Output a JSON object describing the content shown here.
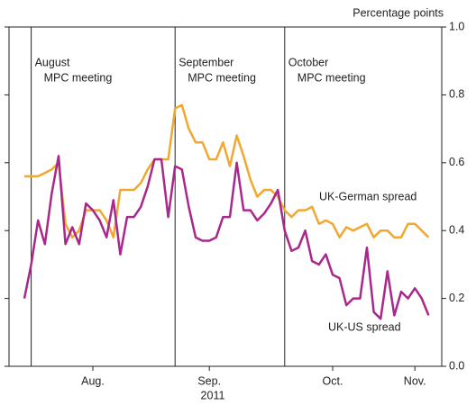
{
  "chart_data": {
    "type": "line",
    "y_label": "Percentage points",
    "x_label": "2011",
    "categories": [
      null,
      null,
      null,
      null,
      null,
      null,
      null,
      null,
      null,
      null,
      "Aug.",
      null,
      null,
      null,
      null,
      null,
      null,
      null,
      null,
      null,
      null,
      null,
      null,
      null,
      null,
      null,
      null,
      "Sep.",
      null,
      null,
      null,
      null,
      null,
      null,
      null,
      null,
      null,
      null,
      null,
      null,
      null,
      null,
      null,
      null,
      null,
      "Oct.",
      null,
      null,
      null,
      null,
      null,
      null,
      null,
      null,
      null,
      null,
      null,
      "Nov.",
      null,
      null
    ],
    "series": [
      {
        "name": "UK-German spread",
        "color": "#f0a830",
        "values": [
          0.56,
          0.56,
          0.56,
          0.57,
          0.58,
          0.6,
          0.42,
          0.38,
          0.4,
          0.46,
          0.46,
          0.46,
          0.43,
          0.38,
          0.52,
          0.52,
          0.52,
          0.54,
          0.58,
          0.61,
          0.61,
          0.61,
          0.76,
          0.77,
          0.7,
          0.66,
          0.66,
          0.61,
          0.61,
          0.66,
          0.59,
          0.68,
          0.62,
          0.55,
          0.5,
          0.52,
          0.52,
          0.5,
          0.46,
          0.44,
          0.46,
          0.46,
          0.47,
          0.42,
          0.43,
          0.42,
          0.38,
          0.41,
          0.4,
          0.41,
          0.42,
          0.38,
          0.4,
          0.4,
          0.38,
          0.38,
          0.42,
          0.42,
          0.4,
          0.38
        ]
      },
      {
        "name": "UK-US spread",
        "color": "#a8288c",
        "values": [
          0.2,
          0.3,
          0.43,
          0.36,
          0.51,
          0.62,
          0.36,
          0.41,
          0.36,
          0.48,
          0.46,
          0.43,
          0.38,
          0.49,
          0.33,
          0.44,
          0.44,
          0.47,
          0.53,
          0.61,
          0.61,
          0.44,
          0.59,
          0.58,
          0.47,
          0.38,
          0.37,
          0.37,
          0.38,
          0.44,
          0.44,
          0.6,
          0.46,
          0.46,
          0.43,
          0.45,
          0.48,
          0.52,
          0.4,
          0.34,
          0.35,
          0.4,
          0.31,
          0.3,
          0.33,
          0.27,
          0.26,
          0.18,
          0.2,
          0.2,
          0.35,
          0.16,
          0.14,
          0.28,
          0.15,
          0.22,
          0.2,
          0.23,
          0.2,
          0.15
        ]
      }
    ],
    "annotations": [
      {
        "category": 1,
        "text": [
          "August",
          "MPC meeting"
        ]
      },
      {
        "category": 22,
        "text": [
          "September",
          "MPC meeting"
        ]
      },
      {
        "category": 38,
        "text": [
          "October",
          "MPC meeting"
        ]
      }
    ],
    "ylim": [
      0.0,
      1.0
    ],
    "yticks": [
      {
        "value": 0,
        "label": "0.0"
      },
      0.2,
      0.4,
      0.6,
      0.8,
      {
        "value": 1,
        "label": "1.0"
      }
    ]
  }
}
